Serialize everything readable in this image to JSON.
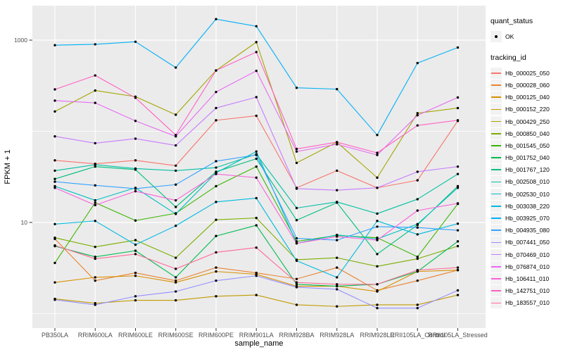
{
  "figure": {
    "background": "#FFFFFF",
    "panel_bg": "#EBEBEB",
    "grid_color": "#FFFFFF",
    "axis_text_color": "#4D4D4D",
    "axis_title_color": "#000000",
    "point_color": "#000000"
  },
  "legend": {
    "quant_status_title": "quant_status",
    "quant_status_items": [
      {
        "label": "OK",
        "symbol": "point"
      }
    ],
    "tracking_id_title": "tracking_id"
  },
  "chart_data": {
    "type": "line",
    "title": "",
    "xlabel": "sample_name",
    "ylabel": "FPKM + 1",
    "x_categories": [
      "PB350LA",
      "RRIM600LA",
      "RRIM600LE",
      "RRIM600SE",
      "RRIM600PE",
      "RRIM901LA",
      "RRIM928BA",
      "RRIM928LA",
      "RRIM928LE",
      "RRII105LA_Control",
      "RRII105LA_Stressed"
    ],
    "y_scale": "log10",
    "ylim": [
      1,
      2300
    ],
    "y_ticks": [
      {
        "label": "1000",
        "value": 1000
      },
      {
        "label": "10",
        "value": 10
      }
    ],
    "y_major_gridlines": [
      1000,
      10
    ],
    "y_minor_gridlines": [
      100,
      1
    ],
    "grid": true,
    "legend_position": "right",
    "point_shape": "circle",
    "series": [
      {
        "name": "Hb_000025_050",
        "color": "#F8766D",
        "values": [
          48,
          44,
          48,
          42,
          132,
          148,
          24,
          37,
          24,
          29,
          130
        ]
      },
      {
        "name": "Hb_000028_060",
        "color": "#EA8331",
        "values": [
          6.6,
          2.3,
          2.8,
          2.3,
          3.2,
          2.8,
          2.4,
          3.2,
          1.8,
          2.3,
          3.0
        ]
      },
      {
        "name": "Hb_000125_040",
        "color": "#D89000",
        "values": [
          2.2,
          2.5,
          2.6,
          2.2,
          2.9,
          2.7,
          2.0,
          2.0,
          1.75,
          2.9,
          3.0
        ]
      },
      {
        "name": "Hb_000152_220",
        "color": "#C09B00",
        "values": [
          1.45,
          1.3,
          1.4,
          1.4,
          1.55,
          1.6,
          1.25,
          1.2,
          1.25,
          1.25,
          1.6
        ]
      },
      {
        "name": "Hb_000429_250",
        "color": "#A3A500",
        "values": [
          165,
          280,
          240,
          152,
          465,
          950,
          45,
          76,
          31,
          158,
          180
        ]
      },
      {
        "name": "Hb_000850_040",
        "color": "#7CAE00",
        "values": [
          6.8,
          5.4,
          6.4,
          4.1,
          10.7,
          11.2,
          3.9,
          4.1,
          3.3,
          4.0,
          5.5
        ]
      },
      {
        "name": "Hb_001545_050",
        "color": "#39B600",
        "values": [
          3.6,
          16.5,
          10.5,
          12.6,
          25,
          41,
          6.2,
          7.2,
          6.8,
          4.2,
          16
        ]
      },
      {
        "name": "Hb_001752_040",
        "color": "#00BB4E",
        "values": [
          5.5,
          4.2,
          4.9,
          2.5,
          7.1,
          9.3,
          2.1,
          2.0,
          2.1,
          2.9,
          6.2
        ]
      },
      {
        "name": "Hb_001767_120",
        "color": "#00BF7D",
        "values": [
          30,
          41,
          38,
          14.8,
          36,
          50,
          10.6,
          16.5,
          4.5,
          9.4,
          25
        ]
      },
      {
        "name": "Hb_002508_010",
        "color": "#00C1A3",
        "values": [
          37,
          43,
          39,
          37,
          40,
          56,
          14.4,
          16.8,
          12.5,
          18,
          34
        ]
      },
      {
        "name": "Hb_002530_010",
        "color": "#00BFC4",
        "values": [
          25,
          17.5,
          24,
          12.4,
          35,
          60,
          5.9,
          7.3,
          6.6,
          9.6,
          24
        ]
      },
      {
        "name": "Hb_003038_220",
        "color": "#00BAE0",
        "values": [
          9.6,
          10.4,
          5.7,
          9.2,
          16.8,
          18.5,
          3.8,
          2.5,
          10.4,
          7.4,
          9.7
        ]
      },
      {
        "name": "Hb_003925_070",
        "color": "#00B0F6",
        "values": [
          880,
          900,
          960,
          500,
          1700,
          1420,
          300,
          290,
          91,
          560,
          830
        ]
      },
      {
        "name": "Hb_004935_080",
        "color": "#35A2FF",
        "values": [
          28,
          25.5,
          23.5,
          26,
          47,
          55,
          6.7,
          6.4,
          9.0,
          8.8,
          8.2
        ]
      },
      {
        "name": "Hb_007441_050",
        "color": "#9590FF",
        "values": [
          1.42,
          1.25,
          1.55,
          1.75,
          2.3,
          2.6,
          1.95,
          1.85,
          1.15,
          1.15,
          1.8
        ]
      },
      {
        "name": "Hb_070469_010",
        "color": "#C77CFF",
        "values": [
          88,
          74,
          83,
          70,
          180,
          237,
          23.5,
          22.6,
          24,
          36,
          41
        ]
      },
      {
        "name": "Hb_076874_010",
        "color": "#E76BF3",
        "values": [
          217,
          205,
          130,
          88,
          270,
          460,
          60,
          72,
          55,
          150,
          235
        ]
      },
      {
        "name": "Hb_106411_010",
        "color": "#FA62DB",
        "values": [
          24,
          15.5,
          22,
          17.5,
          34,
          31,
          5.9,
          7.0,
          6.4,
          13.5,
          16.2
        ]
      },
      {
        "name": "Hb_142751_010",
        "color": "#FF61C3",
        "values": [
          288,
          410,
          233,
          91,
          465,
          740,
          64,
          76,
          58,
          116,
          132
        ]
      },
      {
        "name": "Hb_183557_010",
        "color": "#FF6A98",
        "values": [
          5.6,
          4.0,
          4.5,
          3.1,
          4.7,
          5.3,
          2.2,
          2.1,
          2.1,
          3.0,
          3.2
        ]
      }
    ]
  }
}
